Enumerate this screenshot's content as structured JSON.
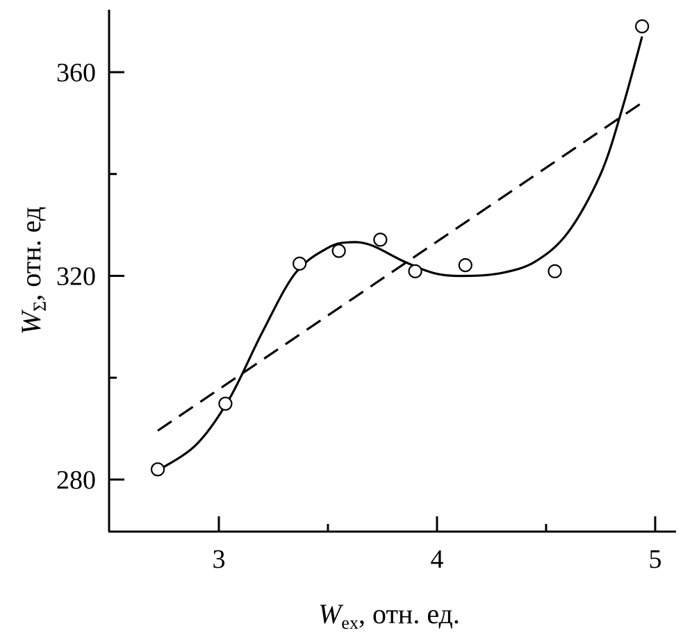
{
  "chart_data": {
    "type": "scatter",
    "title": "",
    "xlabel": {
      "main": "W",
      "sub": "ex",
      "rest": ", отн. ед."
    },
    "ylabel": {
      "main": "W",
      "sub": "Σ",
      "rest": ", отн. ед"
    },
    "xlim": [
      2.5,
      5.1
    ],
    "ylim": [
      270,
      372
    ],
    "x_ticks": [
      3,
      4,
      5
    ],
    "y_ticks": [
      280,
      320,
      360
    ],
    "x_minor_ticks": [
      3.5,
      4.5
    ],
    "y_minor_ticks": [
      300,
      340
    ],
    "grid": false,
    "series": [
      {
        "style": "markers",
        "marker": "open-circle",
        "x": [
          2.72,
          3.03,
          3.37,
          3.55,
          3.74,
          3.9,
          4.13,
          4.54,
          4.94
        ],
        "y": [
          282.0,
          294.9,
          322.4,
          324.9,
          327.1,
          320.9,
          322.1,
          320.9,
          369.0
        ]
      },
      {
        "style": "dashed-line",
        "x": [
          2.72,
          4.94
        ],
        "y": [
          289.6,
          354.0
        ]
      },
      {
        "style": "solid-curve",
        "x": [
          2.73,
          2.9,
          3.05,
          3.2,
          3.35,
          3.5,
          3.6,
          3.7,
          3.85,
          4.0,
          4.15,
          4.3,
          4.45,
          4.6,
          4.75,
          4.85,
          4.94
        ],
        "y": [
          282.0,
          287.0,
          296.0,
          309.0,
          320.5,
          325.5,
          326.6,
          326.0,
          322.8,
          320.4,
          320.0,
          320.6,
          322.8,
          328.5,
          340.0,
          353.0,
          367.0
        ]
      }
    ]
  }
}
